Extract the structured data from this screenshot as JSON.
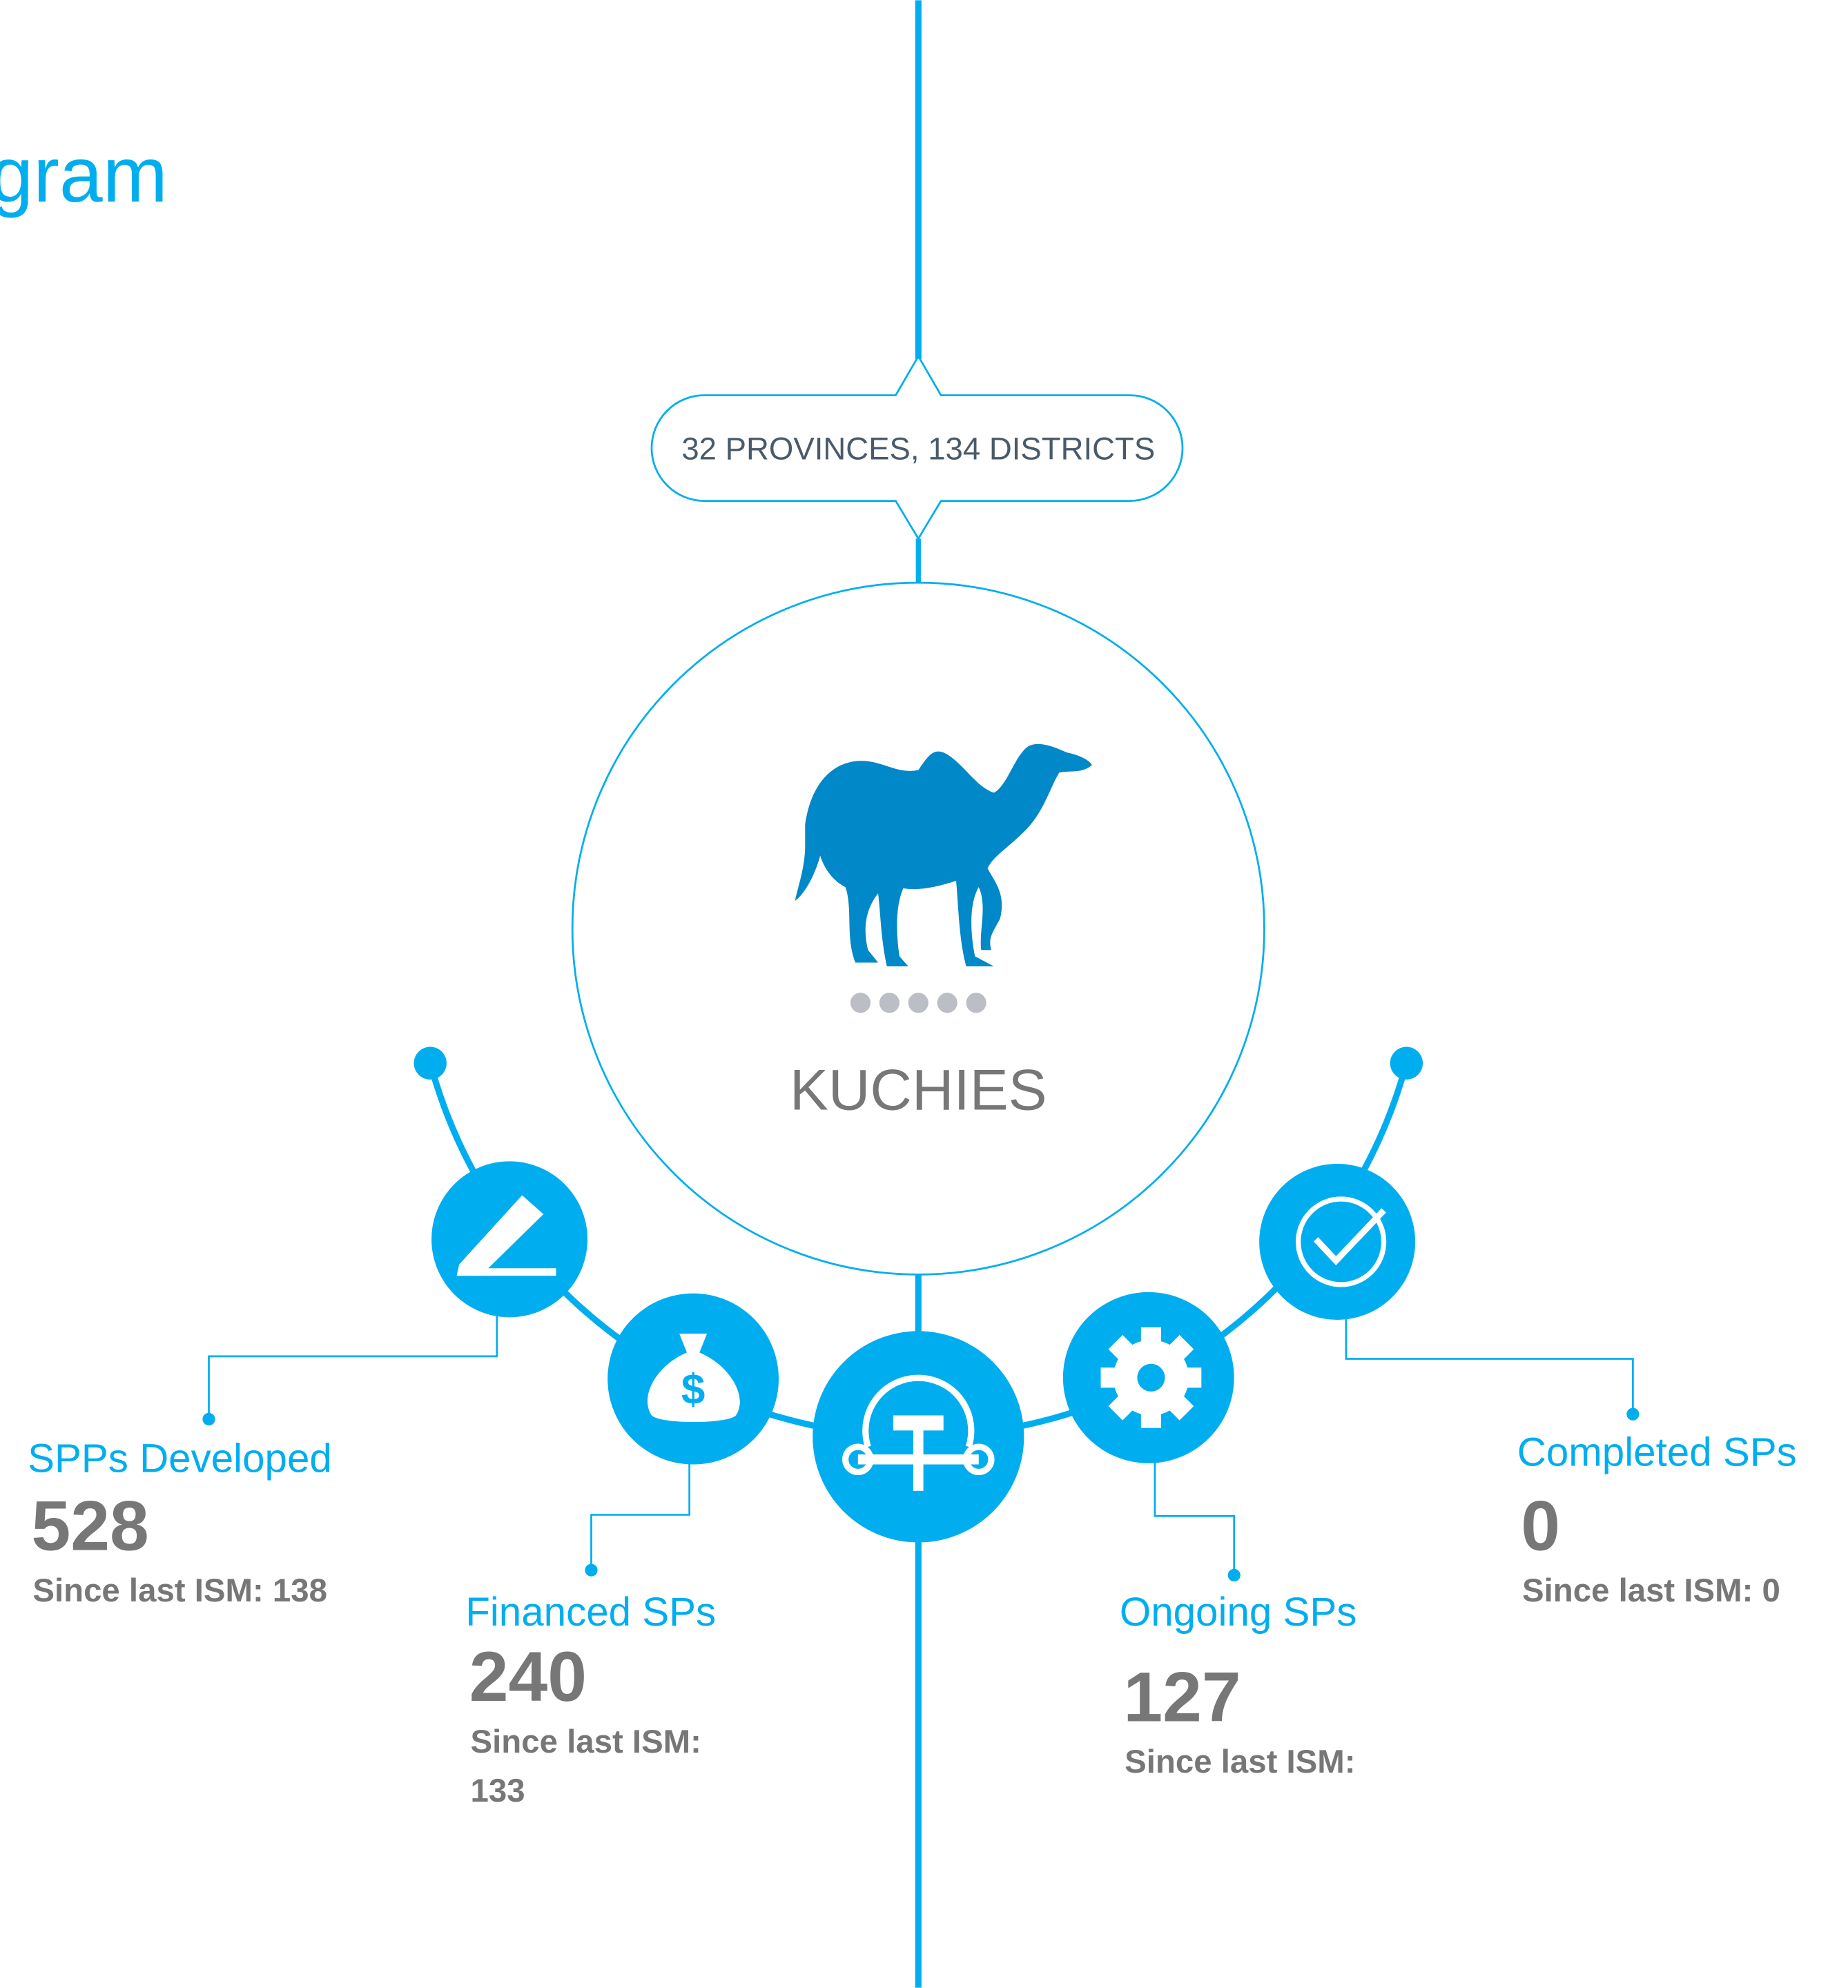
{
  "header": {
    "title_fragment": "gram"
  },
  "badge": "32 PROVINCES, 134 DISTRICTS",
  "center": {
    "title": "KUCHIES"
  },
  "stats": [
    {
      "label": "SPPs Developed",
      "value": 528,
      "since_lines": [
        "Since last ISM: 138"
      ]
    },
    {
      "label": "Financed SPs",
      "value": 240,
      "since_lines": [
        "Since last ISM:",
        "133"
      ]
    },
    {
      "label": "Ongoing SPs",
      "value": 127,
      "since_lines": [
        "Since last ISM:"
      ]
    },
    {
      "label": "Completed SPs",
      "value": 0,
      "since_lines": [
        "Since last ISM: 0"
      ]
    }
  ]
}
